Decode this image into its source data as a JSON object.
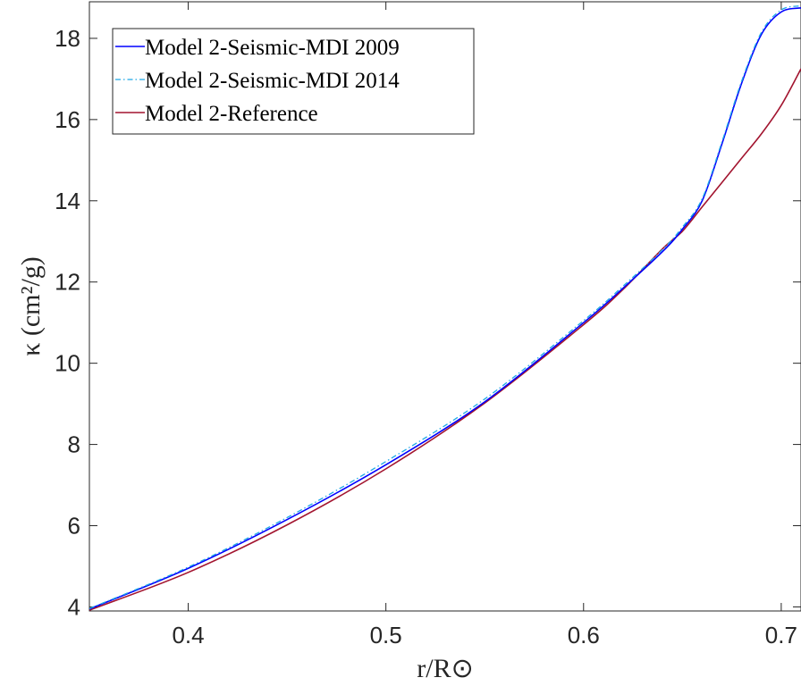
{
  "chart_data": {
    "type": "line",
    "xlabel": "r/R⊙",
    "ylabel": "κ (cm²/g)",
    "xlim": [
      0.35,
      0.71
    ],
    "ylim": [
      3.9,
      18.9
    ],
    "x_ticks": [
      "0.4",
      "0.5",
      "0.6",
      "0.7"
    ],
    "x_tick_values": [
      0.4,
      0.5,
      0.6,
      0.7
    ],
    "y_ticks": [
      "4",
      "6",
      "8",
      "10",
      "12",
      "14",
      "16",
      "18"
    ],
    "y_tick_values": [
      4,
      6,
      8,
      10,
      12,
      14,
      16,
      18
    ],
    "grid": false,
    "legend_position": "top-left",
    "series": [
      {
        "name": "Model 2-Seismic-MDI 2009",
        "color": "#0000ff",
        "style": "solid",
        "x": [
          0.35,
          0.4,
          0.45,
          0.5,
          0.55,
          0.6,
          0.62,
          0.64,
          0.65,
          0.66,
          0.67,
          0.68,
          0.69,
          0.7,
          0.71
        ],
        "y": [
          3.95,
          4.95,
          6.15,
          7.5,
          9.05,
          11.0,
          11.85,
          12.75,
          13.3,
          14.0,
          15.4,
          16.9,
          18.1,
          18.65,
          18.75
        ]
      },
      {
        "name": "Model 2-Seismic-MDI 2014",
        "color": "#1ea8e6",
        "style": "dashdot",
        "x": [
          0.35,
          0.4,
          0.45,
          0.5,
          0.55,
          0.6,
          0.62,
          0.64,
          0.65,
          0.66,
          0.67,
          0.68,
          0.69,
          0.7,
          0.71
        ],
        "y": [
          3.96,
          4.98,
          6.2,
          7.58,
          9.12,
          11.05,
          11.9,
          12.8,
          13.35,
          14.05,
          15.45,
          16.95,
          18.15,
          18.7,
          18.8
        ]
      },
      {
        "name": "Model 2-Reference",
        "color": "#a2142f",
        "style": "solid",
        "x": [
          0.35,
          0.4,
          0.45,
          0.5,
          0.55,
          0.6,
          0.62,
          0.64,
          0.65,
          0.66,
          0.67,
          0.68,
          0.69,
          0.7,
          0.71
        ],
        "y": [
          3.92,
          4.85,
          6.02,
          7.4,
          9.02,
          10.95,
          11.82,
          12.82,
          13.25,
          13.85,
          14.45,
          15.05,
          15.65,
          16.35,
          17.25
        ]
      }
    ]
  }
}
